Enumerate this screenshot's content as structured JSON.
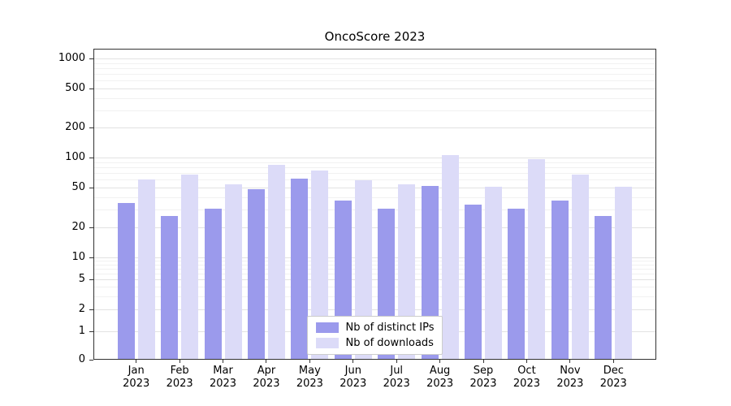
{
  "title": "OncoScore 2023",
  "chart_data": {
    "type": "bar",
    "title": "OncoScore 2023",
    "scale": "symlog",
    "categories": [
      "Jan",
      "Feb",
      "Mar",
      "Apr",
      "May",
      "Jun",
      "Jul",
      "Aug",
      "Sep",
      "Oct",
      "Nov",
      "Dec"
    ],
    "year_label": "2023",
    "series": [
      {
        "name": "Nb of distinct IPs",
        "color": "#9b9aec",
        "values": [
          35,
          26,
          31,
          48,
          62,
          37,
          31,
          52,
          34,
          31,
          37,
          26
        ]
      },
      {
        "name": "Nb of downloads",
        "color": "#dcdbf8",
        "values": [
          60,
          68,
          54,
          85,
          74,
          59,
          54,
          105,
          51,
          97,
          67,
          51
        ]
      }
    ],
    "yticks": [
      0,
      1,
      2,
      5,
      10,
      20,
      50,
      100,
      200,
      500,
      1000
    ],
    "yticks_minor": [
      3,
      4,
      6,
      7,
      8,
      9,
      30,
      40,
      60,
      70,
      80,
      90,
      300,
      400,
      600,
      700,
      800,
      900
    ],
    "ylim": [
      0,
      1200
    ],
    "xlabel": "",
    "ylabel": "",
    "grid": true,
    "legend_position": "lower center"
  }
}
